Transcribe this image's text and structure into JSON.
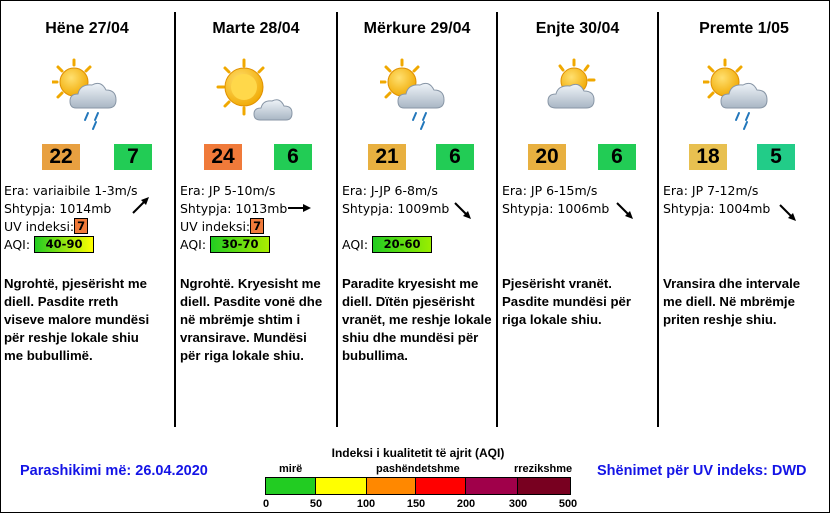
{
  "days": [
    {
      "title": "Hëne 27/04",
      "icon": "sun-cloud-rain-icon",
      "temp": "22",
      "temp_color": "#e8a040",
      "count": "7",
      "count_color": "#22cc55",
      "wind": "Era: variaibile 1-3m/s",
      "pressure": "Shtypja: 1014mb",
      "uv_label": "UV indeksi:",
      "uv": "7",
      "uv_color": "#f07a3a",
      "aqi_label": "AQI:",
      "aqi": "40-90",
      "desc": [
        "Ngrohtë, pjesërisht me",
        "diell.  Pasdite rreth",
        "viseve malore mundësi",
        "për reshje lokale shiu",
        "me bubullimë."
      ]
    },
    {
      "title": "Marte 28/04",
      "icon": "sun-cloud-icon",
      "temp": "24",
      "temp_color": "#f07a3a",
      "count": "6",
      "count_color": "#22cc55",
      "wind": "Era: JP 5-10m/s",
      "pressure": "Shtypja: 1013mb",
      "uv_label": "UV indeksi:",
      "uv": "7",
      "uv_color": "#f07a3a",
      "aqi_label": "AQI:",
      "aqi": "30-70",
      "desc": [
        "Ngrohtë.  Kryesisht me",
        "diell.  Pasdite vonë dhe",
        "në mbrëmje shtim i",
        "vransirave.  Mundësi",
        "për riga lokale shiu."
      ]
    },
    {
      "title": "Mërkure 29/04",
      "icon": "sun-cloud-rain-icon",
      "temp": "21",
      "temp_color": "#e8b040",
      "count": "6",
      "count_color": "#22cc55",
      "wind": "Era: J-JP 6-8m/s",
      "pressure": "Shtypja: 1009mb",
      "aqi_label": "AQI:",
      "aqi": "20-60",
      "desc": [
        "Paradite kryesisht me",
        "diell.  Dïtën pjesërisht",
        "vranët, me reshje lokale",
        "shiu dhe mundësi për",
        "bubullima."
      ]
    },
    {
      "title": "Enjte 30/04",
      "icon": "sun-cloud-icon",
      "temp": "20",
      "temp_color": "#e8b040",
      "count": "6",
      "count_color": "#22cc55",
      "wind": "Era: JP 6-15m/s",
      "pressure": "Shtypja: 1006mb",
      "desc": [
        "Pjesërisht vranët.",
        "Pasdite mundësi për",
        "riga lokale shiu."
      ]
    },
    {
      "title": "Premte 1/05",
      "icon": "sun-cloud-rain-icon",
      "temp": "18",
      "temp_color": "#e8c050",
      "count": "5",
      "count_color": "#22cc88",
      "wind": "Era: JP 7-12m/s",
      "pressure": "Shtypja: 1004mb",
      "desc": [
        "Vransira dhe intervale",
        "me diell.  Në mbrëmje",
        "priten reshje shiu."
      ]
    }
  ],
  "footer": {
    "forecast_date": "Parashikimi më: 26.04.2020",
    "uv_note": "Shënimet për UV indeks: DWD",
    "aqi_title": "Indeksi i kualitetit të ajrit (AQI)",
    "scale_labels": [
      "mirë",
      "pashëndetshme",
      "rrezikshme"
    ],
    "ticks": [
      "0",
      "50",
      "100",
      "150",
      "200",
      "300",
      "500"
    ],
    "colors": [
      "#22cc22",
      "#ffff00",
      "#ff8800",
      "#ff0000",
      "#a0004a",
      "#780020"
    ]
  }
}
